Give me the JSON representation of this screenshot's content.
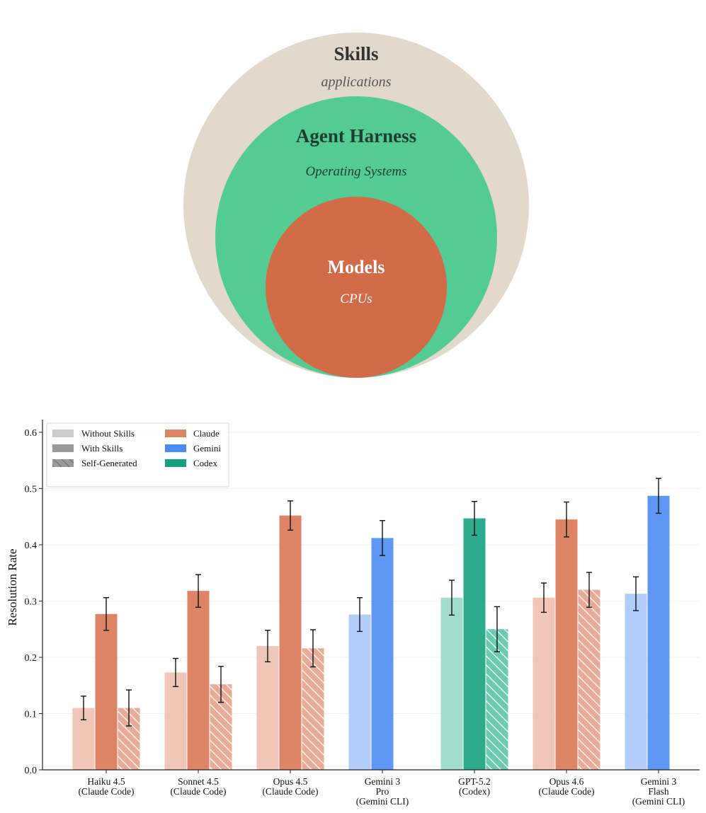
{
  "diagram": {
    "outer": {
      "title": "Skills",
      "subtitle": "applications",
      "color": "#e2d9cc"
    },
    "middle": {
      "title": "Agent Harness",
      "subtitle": "Operating Systems",
      "color": "#55cb94"
    },
    "inner": {
      "title": "Models",
      "subtitle": "CPUs",
      "color": "#d16b48"
    }
  },
  "chart_data": {
    "type": "bar",
    "ylabel": "Resolution Rate",
    "xlabel": "",
    "ylim": [
      0,
      0.62
    ],
    "yticks": [
      "0.0",
      "0.1",
      "0.2",
      "0.3",
      "0.4",
      "0.5",
      "0.6"
    ],
    "grid": "horizontal, faint",
    "legend_position": "top-left",
    "legend": {
      "conditions": [
        "Without Skills",
        "With Skills",
        "Self-Generated"
      ],
      "families": [
        {
          "name": "Claude",
          "color": "#de8466"
        },
        {
          "name": "Gemini",
          "color": "#4c8bf5"
        },
        {
          "name": "Codex",
          "color": "#169f80"
        }
      ]
    },
    "groups": [
      {
        "label": [
          "Haiku 4.5",
          "(Claude Code)"
        ],
        "family": "Claude",
        "light": "#efc6b7",
        "dark": "#de8466",
        "hatch": "#e8ab97",
        "without": 0.11,
        "without_err": 0.021,
        "with": 0.277,
        "with_err": 0.029,
        "self": 0.11,
        "self_err": 0.032
      },
      {
        "label": [
          "Sonnet 4.5",
          "(Claude Code)"
        ],
        "family": "Claude",
        "light": "#efc6b7",
        "dark": "#de8466",
        "hatch": "#e8ab97",
        "without": 0.173,
        "without_err": 0.025,
        "with": 0.318,
        "with_err": 0.029,
        "self": 0.152,
        "self_err": 0.032
      },
      {
        "label": [
          "Opus 4.5",
          "(Claude Code)"
        ],
        "family": "Claude",
        "light": "#efc6b7",
        "dark": "#de8466",
        "hatch": "#e8ab97",
        "without": 0.22,
        "without_err": 0.028,
        "with": 0.452,
        "with_err": 0.026,
        "self": 0.216,
        "self_err": 0.033
      },
      {
        "label": [
          "Gemini 3",
          "Pro",
          "(Gemini CLI)"
        ],
        "family": "Gemini",
        "light": "#b2cdfa",
        "dark": "#5e97f6",
        "hatch": null,
        "without": 0.276,
        "without_err": 0.03,
        "with": 0.412,
        "with_err": 0.031,
        "self": null,
        "self_err": null
      },
      {
        "label": [
          "GPT-5.2",
          "(Codex)"
        ],
        "family": "Codex",
        "light": "#a2dccc",
        "dark": "#2eab8c",
        "hatch": "#6ccab0",
        "without": 0.306,
        "without_err": 0.031,
        "with": 0.447,
        "with_err": 0.03,
        "self": 0.25,
        "self_err": 0.04
      },
      {
        "label": [
          "Opus 4.6",
          "(Claude Code)"
        ],
        "family": "Claude",
        "light": "#efc6b7",
        "dark": "#de8466",
        "hatch": "#e8ab97",
        "without": 0.306,
        "without_err": 0.026,
        "with": 0.445,
        "with_err": 0.031,
        "self": 0.32,
        "self_err": 0.031
      },
      {
        "label": [
          "Gemini 3",
          "Flash",
          "(Gemini CLI)"
        ],
        "family": "Gemini",
        "light": "#b2cdfa",
        "dark": "#5e97f6",
        "hatch": null,
        "without": 0.313,
        "without_err": 0.03,
        "with": 0.487,
        "with_err": 0.031,
        "self": null,
        "self_err": null
      }
    ]
  }
}
